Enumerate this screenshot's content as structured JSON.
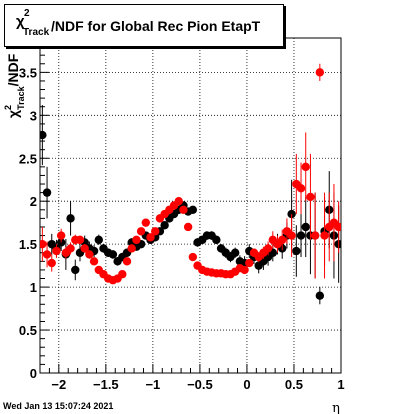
{
  "chart_data": {
    "type": "scatter",
    "title": "χ²Track/NDF for Global Rec Pion EtapT",
    "title_parts": {
      "chi": "χ",
      "sup": "2",
      "sub": "Track",
      "rest": "/NDF for Global Rec Pion EtapT"
    },
    "xlabel": "η",
    "ylabel": "χ²Track/NDF",
    "ylabel_parts": {
      "chi": "χ",
      "sup": "2",
      "sub": "Track",
      "rest": "/NDF"
    },
    "xlim": [
      -2.2,
      1.0
    ],
    "ylim": [
      0,
      3.9
    ],
    "x_ticks": [
      -2,
      -1.5,
      -1,
      -0.5,
      0,
      0.5,
      1
    ],
    "x_tick_labels": [
      "−2",
      "−1.5",
      "−1",
      "−0.5",
      "0",
      "0.5",
      "1"
    ],
    "y_ticks": [
      0,
      0.5,
      1,
      1.5,
      2,
      2.5,
      3,
      3.5
    ],
    "y_tick_labels": [
      "0",
      "0.5",
      "1",
      "1.5",
      "2",
      "2.5",
      "3",
      "3.5"
    ],
    "grid": true,
    "series": [
      {
        "color": "#000000",
        "points": [
          [
            -2.175,
            2.77,
            0.35
          ],
          [
            -2.125,
            2.1,
            0.3
          ],
          [
            -2.075,
            1.5,
            0.12
          ],
          [
            -2.025,
            1.45,
            0.1
          ],
          [
            -1.975,
            1.52,
            0.1
          ],
          [
            -1.925,
            1.38,
            0.18
          ],
          [
            -1.875,
            1.8,
            0.2
          ],
          [
            -1.825,
            1.2,
            0.12
          ],
          [
            -1.775,
            1.4,
            0.1
          ],
          [
            -1.725,
            1.52,
            0.08
          ],
          [
            -1.675,
            1.45,
            0.08
          ],
          [
            -1.625,
            1.42,
            0.07
          ],
          [
            -1.575,
            1.55,
            0.06
          ],
          [
            -1.525,
            1.45,
            0.05
          ],
          [
            -1.475,
            1.4,
            0.05
          ],
          [
            -1.425,
            1.38,
            0.05
          ],
          [
            -1.375,
            1.3,
            0.05
          ],
          [
            -1.325,
            1.35,
            0.05
          ],
          [
            -1.275,
            1.4,
            0.05
          ],
          [
            -1.225,
            1.52,
            0.05
          ],
          [
            -1.175,
            1.47,
            0.04
          ],
          [
            -1.125,
            1.5,
            0.04
          ],
          [
            -1.075,
            1.6,
            0.04
          ],
          [
            -1.025,
            1.55,
            0.04
          ],
          [
            -0.975,
            1.58,
            0.04
          ],
          [
            -0.925,
            1.65,
            0.04
          ],
          [
            -0.875,
            1.72,
            0.04
          ],
          [
            -0.825,
            1.8,
            0.04
          ],
          [
            -0.775,
            1.85,
            0.04
          ],
          [
            -0.725,
            1.9,
            0.04
          ],
          [
            -0.675,
            1.95,
            0.04
          ],
          [
            -0.625,
            1.88,
            0.04
          ],
          [
            -0.575,
            1.9,
            0.04
          ],
          [
            -0.525,
            1.52,
            0.05
          ],
          [
            -0.475,
            1.55,
            0.05
          ],
          [
            -0.425,
            1.6,
            0.05
          ],
          [
            -0.375,
            1.6,
            0.05
          ],
          [
            -0.325,
            1.55,
            0.05
          ],
          [
            -0.275,
            1.45,
            0.05
          ],
          [
            -0.225,
            1.4,
            0.06
          ],
          [
            -0.175,
            1.35,
            0.06
          ],
          [
            -0.125,
            1.4,
            0.06
          ],
          [
            -0.075,
            1.3,
            0.07
          ],
          [
            -0.025,
            1.28,
            0.08
          ],
          [
            0.025,
            1.42,
            0.08
          ],
          [
            0.075,
            1.35,
            0.08
          ],
          [
            0.125,
            1.25,
            0.09
          ],
          [
            0.175,
            1.3,
            0.1
          ],
          [
            0.225,
            1.35,
            0.1
          ],
          [
            0.275,
            1.4,
            0.1
          ],
          [
            0.325,
            1.5,
            0.12
          ],
          [
            0.375,
            1.45,
            0.12
          ],
          [
            0.425,
            1.6,
            0.15
          ],
          [
            0.475,
            1.85,
            0.4
          ],
          [
            0.525,
            1.42,
            0.3
          ],
          [
            0.575,
            1.6,
            0.25
          ],
          [
            0.625,
            1.7,
            0.35
          ],
          [
            0.675,
            1.6,
            0.45
          ],
          [
            0.725,
            1.6,
            0.5
          ],
          [
            0.775,
            0.9,
            0.1
          ],
          [
            0.825,
            1.65,
            0.4
          ],
          [
            0.875,
            1.9,
            0.45
          ],
          [
            0.925,
            1.6,
            0.5
          ],
          [
            0.975,
            1.5,
            0.45
          ]
        ]
      },
      {
        "color": "#ff0000",
        "points": [
          [
            -2.175,
            1.5,
            0.2
          ],
          [
            -2.125,
            1.38,
            0.15
          ],
          [
            -2.075,
            1.28,
            0.1
          ],
          [
            -2.025,
            1.42,
            0.08
          ],
          [
            -1.975,
            1.6,
            0.08
          ],
          [
            -1.925,
            1.4,
            0.07
          ],
          [
            -1.875,
            1.45,
            0.07
          ],
          [
            -1.825,
            1.55,
            0.06
          ],
          [
            -1.775,
            1.55,
            0.05
          ],
          [
            -1.725,
            1.45,
            0.05
          ],
          [
            -1.675,
            1.38,
            0.05
          ],
          [
            -1.625,
            1.3,
            0.04
          ],
          [
            -1.575,
            1.2,
            0.04
          ],
          [
            -1.525,
            1.15,
            0.04
          ],
          [
            -1.475,
            1.1,
            0.04
          ],
          [
            -1.425,
            1.08,
            0.03
          ],
          [
            -1.375,
            1.1,
            0.03
          ],
          [
            -1.325,
            1.15,
            0.03
          ],
          [
            -1.275,
            1.3,
            0.03
          ],
          [
            -1.225,
            1.45,
            0.03
          ],
          [
            -1.175,
            1.55,
            0.03
          ],
          [
            -1.125,
            1.65,
            0.03
          ],
          [
            -1.075,
            1.75,
            0.03
          ],
          [
            -1.025,
            1.58,
            0.03
          ],
          [
            -0.975,
            1.65,
            0.03
          ],
          [
            -0.925,
            1.8,
            0.03
          ],
          [
            -0.875,
            1.85,
            0.03
          ],
          [
            -0.825,
            1.9,
            0.03
          ],
          [
            -0.775,
            1.95,
            0.03
          ],
          [
            -0.725,
            2.0,
            0.03
          ],
          [
            -0.675,
            1.9,
            0.03
          ],
          [
            -0.625,
            1.7,
            0.03
          ],
          [
            -0.575,
            1.35,
            0.03
          ],
          [
            -0.525,
            1.25,
            0.03
          ],
          [
            -0.475,
            1.2,
            0.03
          ],
          [
            -0.425,
            1.18,
            0.03
          ],
          [
            -0.375,
            1.17,
            0.03
          ],
          [
            -0.325,
            1.16,
            0.03
          ],
          [
            -0.275,
            1.16,
            0.03
          ],
          [
            -0.225,
            1.15,
            0.03
          ],
          [
            -0.175,
            1.15,
            0.03
          ],
          [
            -0.125,
            1.18,
            0.03
          ],
          [
            -0.075,
            1.22,
            0.04
          ],
          [
            -0.025,
            1.2,
            0.04
          ],
          [
            0.025,
            1.28,
            0.04
          ],
          [
            0.075,
            1.4,
            0.05
          ],
          [
            0.125,
            1.35,
            0.06
          ],
          [
            0.175,
            1.4,
            0.07
          ],
          [
            0.225,
            1.45,
            0.08
          ],
          [
            0.275,
            1.55,
            0.1
          ],
          [
            0.325,
            1.5,
            0.1
          ],
          [
            0.375,
            1.55,
            0.12
          ],
          [
            0.425,
            1.65,
            0.15
          ],
          [
            0.475,
            1.6,
            0.25
          ],
          [
            0.525,
            2.2,
            0.35
          ],
          [
            0.575,
            2.15,
            0.3
          ],
          [
            0.625,
            2.4,
            0.4
          ],
          [
            0.675,
            2.05,
            0.5
          ],
          [
            0.725,
            1.6,
            0.5
          ],
          [
            0.775,
            3.5,
            0.1
          ],
          [
            0.825,
            1.6,
            0.5
          ],
          [
            0.875,
            1.7,
            0.4
          ],
          [
            0.925,
            1.75,
            0.45
          ],
          [
            0.975,
            1.7,
            0.3
          ]
        ]
      }
    ]
  },
  "footer": {
    "timestamp": "Wed Jan 13 15:07:24 2021"
  }
}
